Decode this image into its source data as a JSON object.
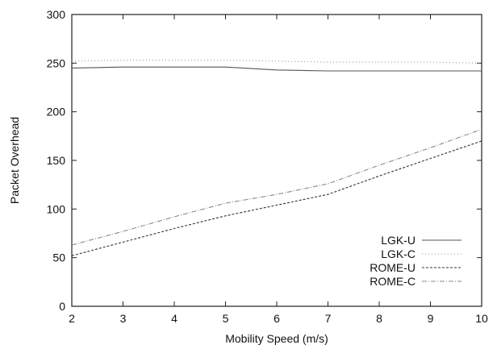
{
  "chart_data": {
    "type": "line",
    "title": "",
    "xlabel": "Mobility Speed (m/s)",
    "ylabel": "Packet Overhead",
    "xlim": [
      2,
      10
    ],
    "ylim": [
      0,
      300
    ],
    "x_ticks": [
      2,
      3,
      4,
      5,
      6,
      7,
      8,
      9,
      10
    ],
    "y_ticks": [
      0,
      50,
      100,
      150,
      200,
      250,
      300
    ],
    "grid": false,
    "legend_position": "bottom-right",
    "x": [
      2,
      3,
      4,
      5,
      6,
      7,
      8,
      9,
      10
    ],
    "series": [
      {
        "name": "LGK-U",
        "color": "#555555",
        "dash": "",
        "values": [
          245,
          246,
          246,
          246,
          243,
          242,
          242,
          242,
          242
        ]
      },
      {
        "name": "LGK-C",
        "color": "#9a9a9a",
        "dash": "1 3",
        "values": [
          252,
          253,
          253,
          253,
          252,
          251,
          251,
          251,
          250
        ]
      },
      {
        "name": "ROME-U",
        "color": "#333333",
        "dash": "3 2",
        "values": [
          52,
          66,
          80,
          93,
          104,
          115,
          134,
          152,
          170
        ]
      },
      {
        "name": "ROME-C",
        "color": "#8a8a8a",
        "dash": "6 2 1 2",
        "values": [
          63,
          77,
          92,
          106,
          115,
          126,
          145,
          163,
          182
        ]
      }
    ]
  }
}
